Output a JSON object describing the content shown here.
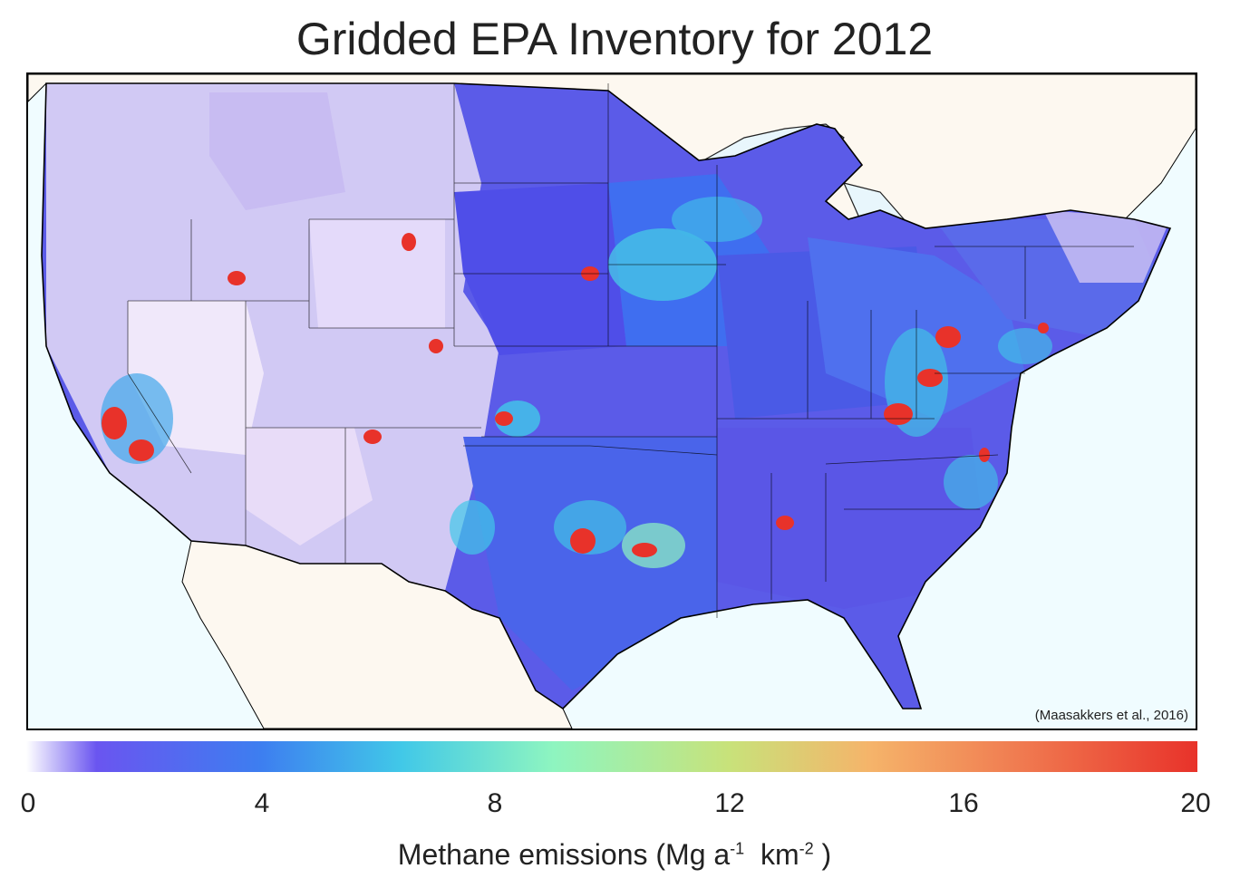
{
  "title": "Gridded EPA Inventory for 2012",
  "citation": "(Maasakkers et al., 2016)",
  "colorbar": {
    "ticks": [
      "0",
      "4",
      "8",
      "12",
      "16",
      "20"
    ],
    "range": [
      0,
      20
    ],
    "label_main": "Methane emissions (Mg a",
    "label_exp1": "-1",
    "label_mid": "  km",
    "label_exp2": "-2",
    "label_end": " )",
    "colors": [
      "#ffffff",
      "#6a55f0",
      "#3d7ef0",
      "#41c8e8",
      "#8ef5c0",
      "#c8e27a",
      "#f5b46a",
      "#f07a50",
      "#e8322a"
    ]
  },
  "map": {
    "ocean_color": "#f0fcff",
    "land_color": "#fdf8f0",
    "hotspot_color": "#e8322a"
  }
}
